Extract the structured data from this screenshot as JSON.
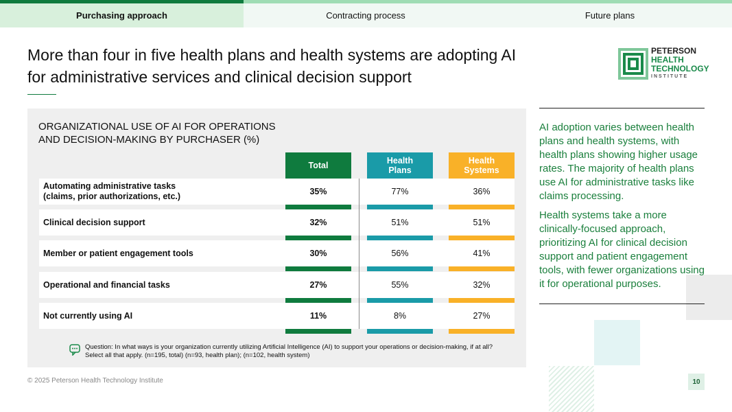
{
  "tabs": [
    "Purchasing approach",
    "Contracting process",
    "Future plans"
  ],
  "header": {
    "title": "More than four in five health plans and health systems are adopting AI\nfor administrative services and clinical decision support"
  },
  "logo": {
    "lines": [
      "PETERSON",
      "HEALTH",
      "TECHNOLOGY",
      "INSTITUTE"
    ]
  },
  "table": {
    "title": "ORGANIZATIONAL USE OF AI FOR OPERATIONS\nAND DECISION-MAKING BY PURCHASER (%)",
    "columns": [
      "Total",
      "Health\nPlans",
      "Health\nSystems"
    ],
    "rows": [
      [
        "Automating administrative tasks\n(claims, prior authorizations, etc.)",
        "35%",
        "77%",
        "36%"
      ],
      [
        "Clinical decision support",
        "32%",
        "51%",
        "51%"
      ],
      [
        "Member or patient engagement tools",
        "30%",
        "56%",
        "41%"
      ],
      [
        "Operational and financial tasks",
        "27%",
        "55%",
        "32%"
      ],
      [
        "Not currently using AI",
        "11%",
        "8%",
        "27%"
      ]
    ],
    "note": "Question: In what ways is your organization currently utilizing Artificial Intelligence (AI) to support your operations or decision-making, if at all?\nSelect all that apply. (n=195, total) (n=93, health plan); (n=102, health system)"
  },
  "sidebar": {
    "paragraphs": [
      "AI adoption varies between health plans and health systems, with health plans showing higher usage rates. The majority of health plans use AI for administrative tasks like claims processing.",
      "Health systems take a more clinically-focused approach, prioritizing AI for clinical decision support and patient engagement tools, with fewer organizations using it for operational purposes."
    ]
  },
  "footer": {
    "copyright": "© 2025 Peterson Health Technology Institute",
    "page": "10"
  }
}
